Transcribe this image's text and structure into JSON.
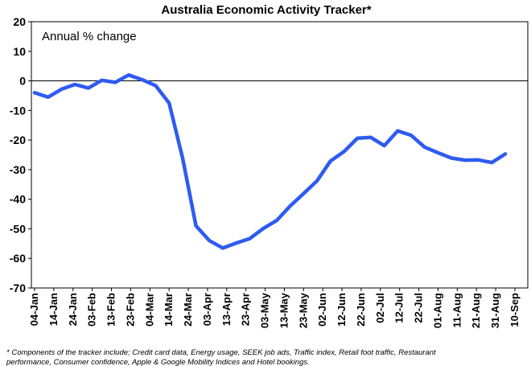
{
  "chart_data": {
    "type": "line",
    "title": "Australia Economic Activity Tracker*",
    "annotation": "Annual % change",
    "ylim": [
      -70,
      20
    ],
    "yticks": [
      20,
      10,
      0,
      -10,
      -20,
      -30,
      -40,
      -50,
      -60,
      -70
    ],
    "grid": false,
    "x_tick_labels": [
      "04-Jan",
      "14-Jan",
      "24-Jan",
      "03-Feb",
      "13-Feb",
      "23-Feb",
      "04-Mar",
      "14-Mar",
      "24-Mar",
      "03-Apr",
      "13-Apr",
      "23-Apr",
      "03-May",
      "13-May",
      "23-May",
      "02-Jun",
      "12-Jun",
      "22-Jun",
      "02-Jul",
      "12-Jul",
      "22-Jul",
      "01-Aug",
      "11-Aug",
      "21-Aug",
      "31-Aug",
      "10-Sep"
    ],
    "series": [
      {
        "color": "#2e5bf0",
        "x": [
          "04-Jan",
          "11-Jan",
          "18-Jan",
          "25-Jan",
          "01-Feb",
          "08-Feb",
          "15-Feb",
          "22-Feb",
          "29-Feb",
          "07-Mar",
          "14-Mar",
          "21-Mar",
          "28-Mar",
          "04-Apr",
          "11-Apr",
          "18-Apr",
          "25-Apr",
          "02-May",
          "09-May",
          "16-May",
          "23-May",
          "30-May",
          "06-Jun",
          "13-Jun",
          "20-Jun",
          "27-Jun",
          "04-Jul",
          "11-Jul",
          "18-Jul",
          "25-Jul",
          "01-Aug",
          "08-Aug",
          "15-Aug",
          "22-Aug",
          "29-Aug",
          "05-Sep"
        ],
        "values": [
          -4,
          -5.5,
          -2.8,
          -1.2,
          -2.4,
          0.2,
          -0.5,
          2,
          0.4,
          -1.6,
          -7.5,
          -26,
          -49,
          -54,
          -56.5,
          -54.8,
          -53.3,
          -49.9,
          -47.2,
          -42.3,
          -38.1,
          -33.8,
          -27.1,
          -23.9,
          -19.4,
          -19.1,
          -21.9,
          -16.9,
          -18.4,
          -22.4,
          -24.3,
          -26.1,
          -26.8,
          -26.7,
          -27.6,
          -24.7
        ]
      }
    ],
    "footnote_lines": [
      "* Components of the tracker include; Credit card data, Energy usage, SEEK job ads, Traffic index, Retail foot traffic, Restaurant",
      "performance, Consumer confidence, Apple & Google Mobility Indices and Hotel bookings."
    ]
  }
}
